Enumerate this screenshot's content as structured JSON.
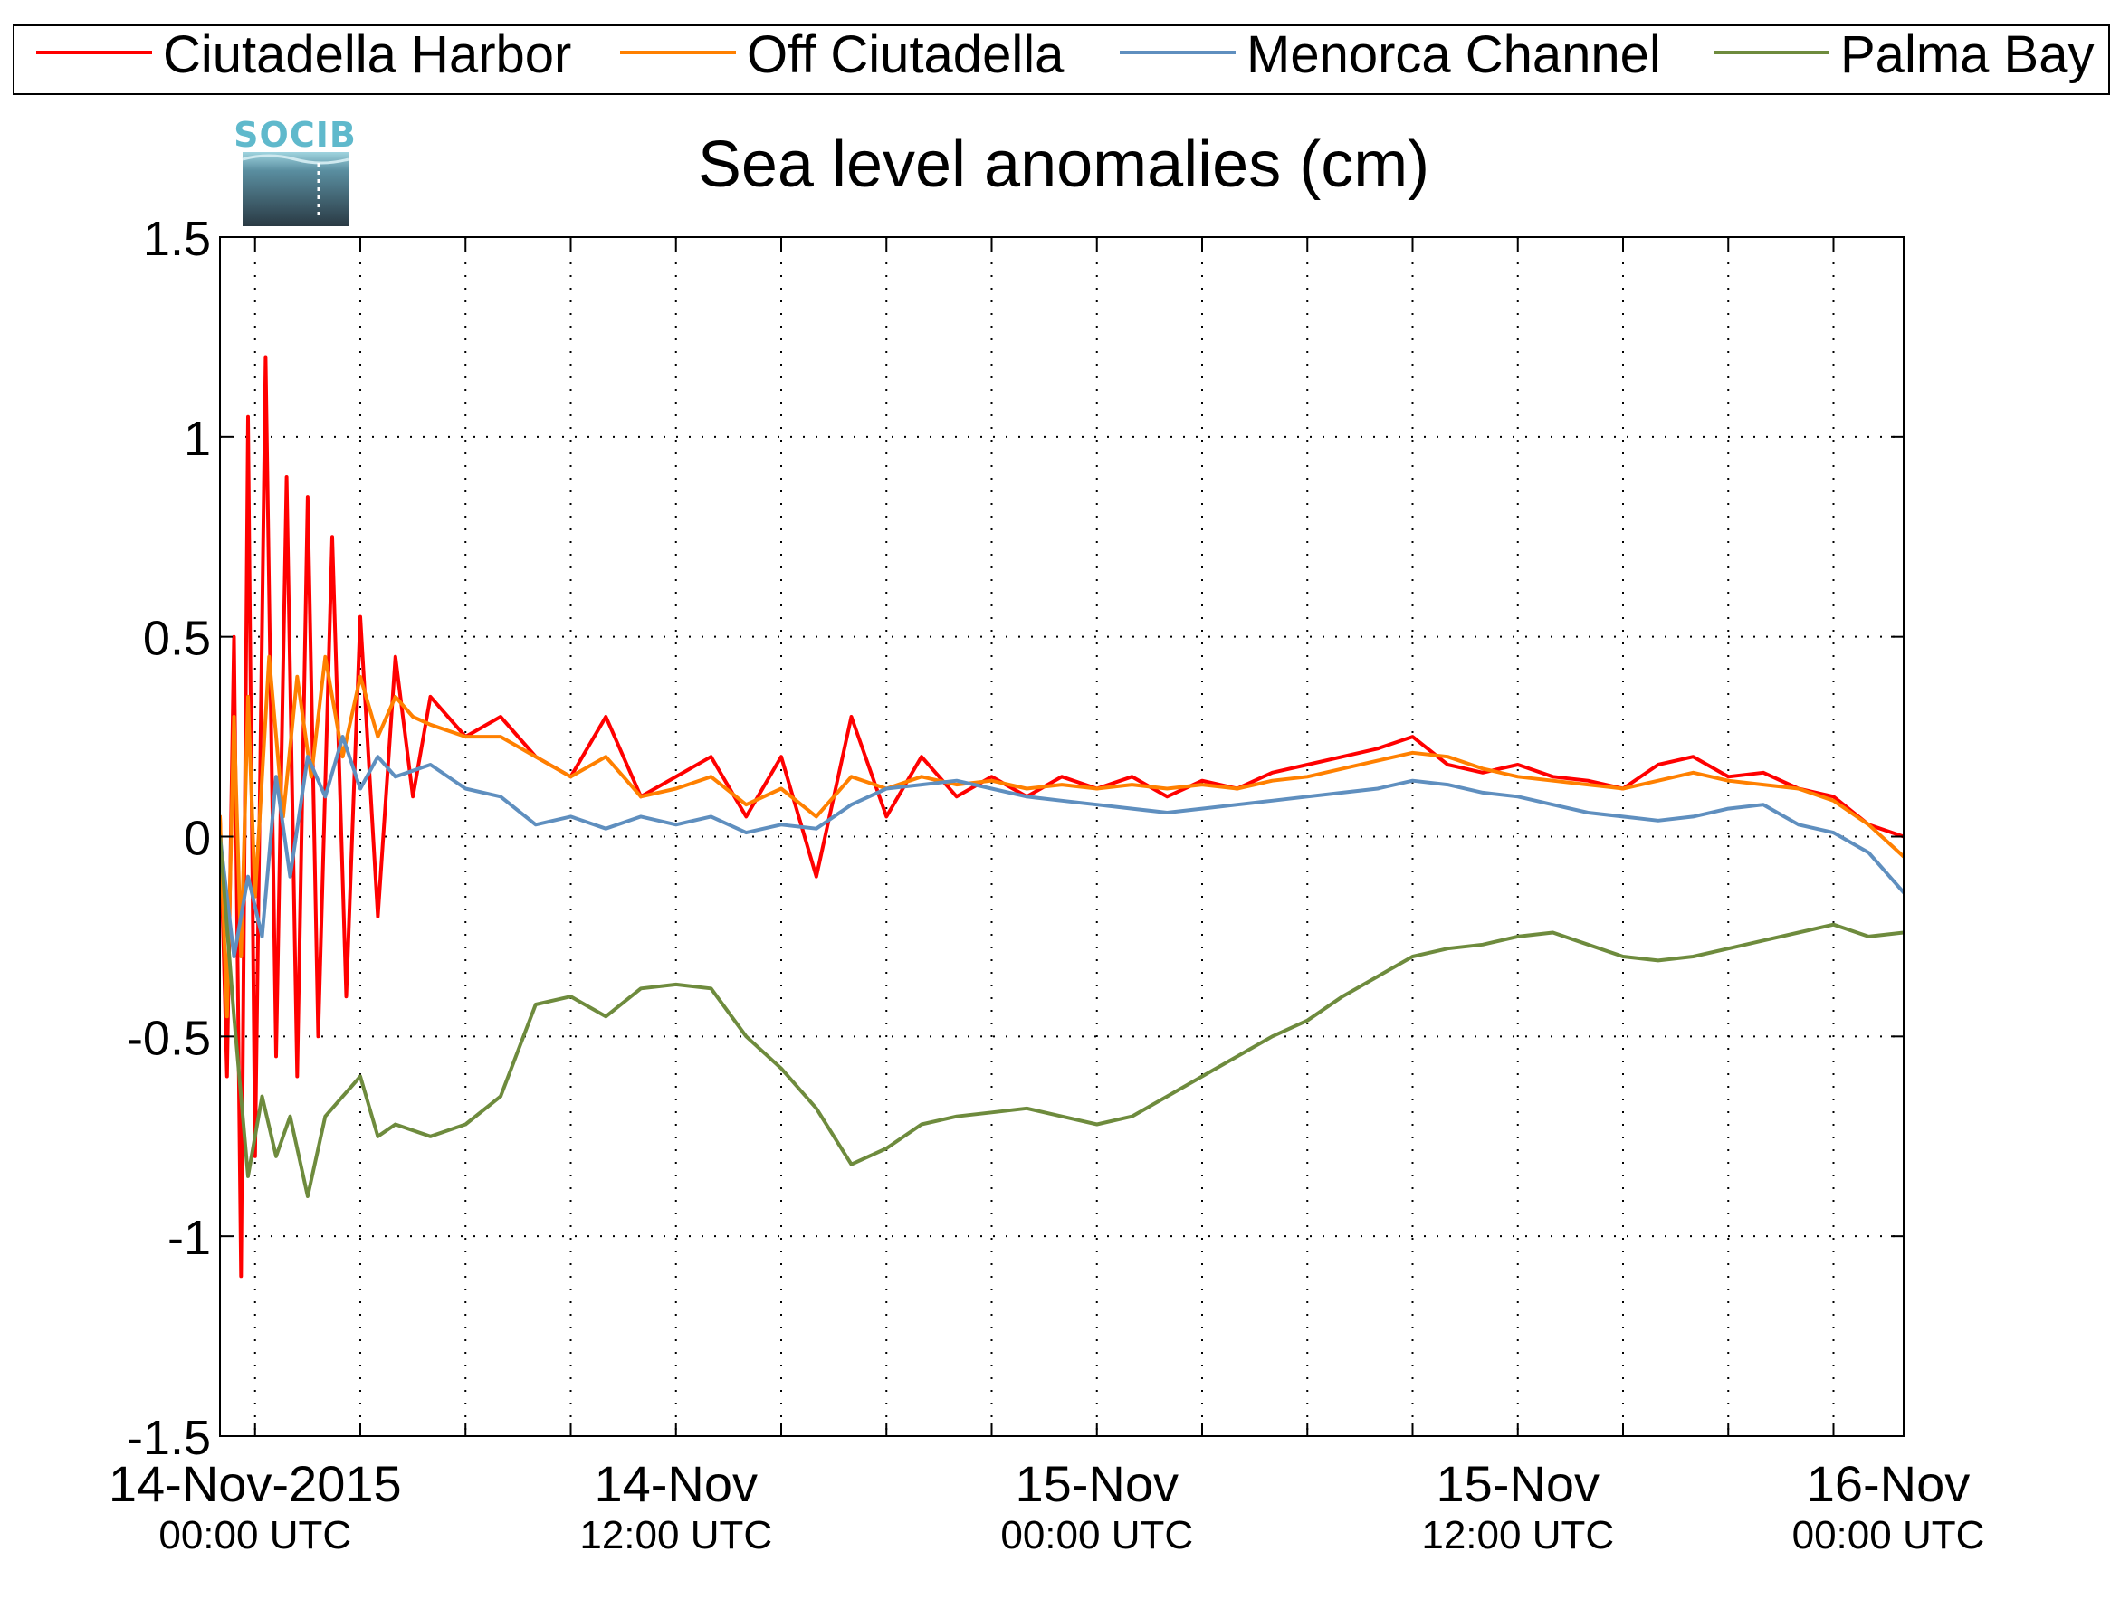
{
  "chart_data": {
    "type": "line",
    "title": "Sea level anomalies (cm)",
    "logo_text": "SOCIB",
    "xlabel": "",
    "ylabel": "",
    "ylim": [
      -1.5,
      1.5
    ],
    "y_ticks": [
      -1.5,
      -1,
      -0.5,
      0,
      0.5,
      1,
      1.5
    ],
    "y_tick_labels": [
      "-1.5",
      "-1",
      "-0.5",
      "0",
      "0.5",
      "1",
      "1.5"
    ],
    "x_unit": "hours since 14-Nov-2015 00:00 UTC",
    "xlim": [
      -1,
      47
    ],
    "x_minor_ticks_hours": 3,
    "x_ticks": [
      {
        "hour": 0,
        "date": "14-Nov-2015",
        "time": "00:00 UTC"
      },
      {
        "hour": 12,
        "date": "14-Nov",
        "time": "12:00 UTC"
      },
      {
        "hour": 24,
        "date": "15-Nov",
        "time": "00:00 UTC"
      },
      {
        "hour": 36,
        "date": "15-Nov",
        "time": "12:00 UTC"
      },
      {
        "hour": 48,
        "date": "16-Nov",
        "time": "00:00 UTC"
      }
    ],
    "grid": true,
    "legend_position": "top",
    "series": [
      {
        "name": "Ciutadella Harbor",
        "color": "#ff0000",
        "x": [
          -1,
          -0.8,
          -0.6,
          -0.4,
          -0.2,
          0,
          0.3,
          0.6,
          0.9,
          1.2,
          1.5,
          1.8,
          2.2,
          2.6,
          3,
          3.5,
          4,
          4.5,
          5,
          6,
          7,
          8,
          9,
          10,
          11,
          12,
          13,
          14,
          15,
          16,
          17,
          18,
          19,
          20,
          21,
          22,
          23,
          24,
          25,
          26,
          27,
          28,
          29,
          30,
          31,
          32,
          33,
          34,
          35,
          36,
          37,
          38,
          39,
          40,
          41,
          42,
          43,
          44,
          45,
          46,
          47
        ],
        "y": [
          0.05,
          -0.6,
          0.5,
          -1.1,
          1.05,
          -0.8,
          1.2,
          -0.55,
          0.9,
          -0.6,
          0.85,
          -0.5,
          0.75,
          -0.4,
          0.55,
          -0.2,
          0.45,
          0.1,
          0.35,
          0.25,
          0.3,
          0.2,
          0.15,
          0.3,
          0.1,
          0.15,
          0.2,
          0.05,
          0.2,
          -0.1,
          0.3,
          0.05,
          0.2,
          0.1,
          0.15,
          0.1,
          0.15,
          0.12,
          0.15,
          0.1,
          0.14,
          0.12,
          0.16,
          0.18,
          0.2,
          0.22,
          0.25,
          0.18,
          0.16,
          0.18,
          0.15,
          0.14,
          0.12,
          0.18,
          0.2,
          0.15,
          0.16,
          0.12,
          0.1,
          0.03,
          0
        ]
      },
      {
        "name": "Off Ciutadella",
        "color": "#ff8000",
        "x": [
          -1,
          -0.8,
          -0.6,
          -0.4,
          -0.2,
          0,
          0.4,
          0.8,
          1.2,
          1.6,
          2,
          2.5,
          3,
          3.5,
          4,
          4.5,
          5,
          6,
          7,
          8,
          9,
          10,
          11,
          12,
          13,
          14,
          15,
          16,
          17,
          18,
          19,
          20,
          21,
          22,
          23,
          24,
          25,
          26,
          27,
          28,
          29,
          30,
          31,
          32,
          33,
          34,
          35,
          36,
          37,
          38,
          39,
          40,
          41,
          42,
          43,
          44,
          45,
          46,
          47
        ],
        "y": [
          0.05,
          -0.45,
          0.3,
          -0.3,
          0.35,
          -0.15,
          0.45,
          0.05,
          0.4,
          0.15,
          0.45,
          0.2,
          0.4,
          0.25,
          0.35,
          0.3,
          0.28,
          0.25,
          0.25,
          0.2,
          0.15,
          0.2,
          0.1,
          0.12,
          0.15,
          0.08,
          0.12,
          0.05,
          0.15,
          0.12,
          0.15,
          0.13,
          0.14,
          0.12,
          0.13,
          0.12,
          0.13,
          0.12,
          0.13,
          0.12,
          0.14,
          0.15,
          0.17,
          0.19,
          0.21,
          0.2,
          0.17,
          0.15,
          0.14,
          0.13,
          0.12,
          0.14,
          0.16,
          0.14,
          0.13,
          0.12,
          0.09,
          0.03,
          -0.05
        ]
      },
      {
        "name": "Menorca Channel",
        "color": "#5f8fbf",
        "x": [
          -1,
          -0.6,
          -0.2,
          0.2,
          0.6,
          1,
          1.5,
          2,
          2.5,
          3,
          3.5,
          4,
          5,
          6,
          7,
          8,
          9,
          10,
          11,
          12,
          13,
          14,
          15,
          16,
          17,
          18,
          19,
          20,
          21,
          22,
          23,
          24,
          25,
          26,
          27,
          28,
          29,
          30,
          31,
          32,
          33,
          34,
          35,
          36,
          37,
          38,
          39,
          40,
          41,
          42,
          43,
          44,
          45,
          46,
          47
        ],
        "y": [
          0,
          -0.3,
          -0.1,
          -0.25,
          0.15,
          -0.1,
          0.2,
          0.1,
          0.25,
          0.12,
          0.2,
          0.15,
          0.18,
          0.12,
          0.1,
          0.03,
          0.05,
          0.02,
          0.05,
          0.03,
          0.05,
          0.01,
          0.03,
          0.02,
          0.08,
          0.12,
          0.13,
          0.14,
          0.12,
          0.1,
          0.09,
          0.08,
          0.07,
          0.06,
          0.07,
          0.08,
          0.09,
          0.1,
          0.11,
          0.12,
          0.14,
          0.13,
          0.11,
          0.1,
          0.08,
          0.06,
          0.05,
          0.04,
          0.05,
          0.07,
          0.08,
          0.03,
          0.01,
          -0.04,
          -0.14
        ]
      },
      {
        "name": "Palma Bay",
        "color": "#6e8b3d",
        "x": [
          -1,
          -0.6,
          -0.2,
          0.2,
          0.6,
          1,
          1.5,
          2,
          2.5,
          3,
          3.5,
          4,
          5,
          6,
          7,
          8,
          9,
          10,
          11,
          12,
          13,
          14,
          15,
          16,
          17,
          18,
          19,
          20,
          21,
          22,
          23,
          24,
          25,
          26,
          27,
          28,
          29,
          30,
          31,
          32,
          33,
          34,
          35,
          36,
          37,
          38,
          39,
          40,
          41,
          42,
          43,
          44,
          45,
          46,
          47
        ],
        "y": [
          0,
          -0.45,
          -0.85,
          -0.65,
          -0.8,
          -0.7,
          -0.9,
          -0.7,
          -0.65,
          -0.6,
          -0.75,
          -0.72,
          -0.75,
          -0.72,
          -0.65,
          -0.42,
          -0.4,
          -0.45,
          -0.38,
          -0.37,
          -0.38,
          -0.5,
          -0.58,
          -0.68,
          -0.82,
          -0.78,
          -0.72,
          -0.7,
          -0.69,
          -0.68,
          -0.7,
          -0.72,
          -0.7,
          -0.65,
          -0.6,
          -0.55,
          -0.5,
          -0.46,
          -0.4,
          -0.35,
          -0.3,
          -0.28,
          -0.27,
          -0.25,
          -0.24,
          -0.27,
          -0.3,
          -0.31,
          -0.3,
          -0.28,
          -0.26,
          -0.24,
          -0.22,
          -0.25,
          -0.24
        ]
      }
    ]
  }
}
